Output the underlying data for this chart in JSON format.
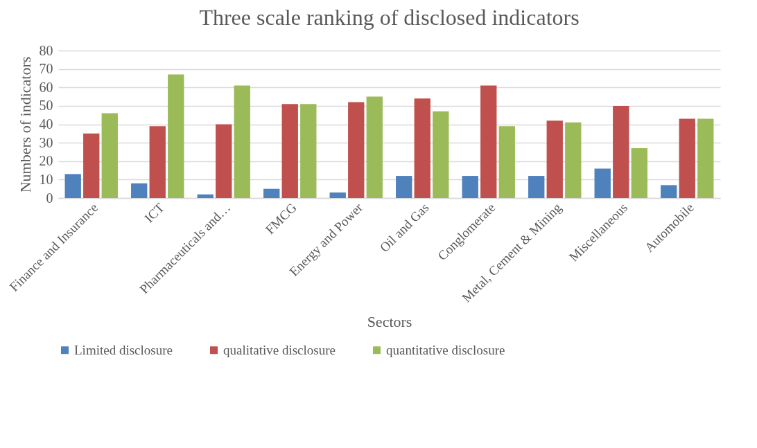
{
  "chart_data": {
    "type": "bar",
    "title": "Three scale ranking of disclosed indicators",
    "xlabel": "Sectors",
    "ylabel": "Numbers of indicators",
    "categories": [
      "Finance and Insurance",
      "ICT",
      "Pharmaceuticals and…",
      "FMCG",
      "Energy and Power",
      "Oil and Gas",
      "Conglomerate",
      "Metal, Cement & Mining",
      "Miscellaneous",
      "Automobile"
    ],
    "series": [
      {
        "name": "Limited disclosure",
        "color": "#4f81bd",
        "values": [
          13,
          8,
          2,
          5,
          3,
          12,
          12,
          12,
          16,
          7
        ]
      },
      {
        "name": "qualitative disclosure",
        "color": "#c0504d",
        "values": [
          35,
          39,
          40,
          51,
          52,
          54,
          61,
          42,
          50,
          43
        ]
      },
      {
        "name": "quantitative disclosure",
        "color": "#9bbb59",
        "values": [
          46,
          67,
          61,
          51,
          55,
          47,
          39,
          41,
          27,
          43
        ]
      }
    ],
    "ylim": [
      0,
      80
    ],
    "yticks": [
      0,
      10,
      20,
      30,
      40,
      50,
      60,
      70,
      80
    ],
    "grid": "y",
    "legend": "bottom"
  }
}
